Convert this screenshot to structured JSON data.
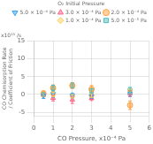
{
  "chart_data": {
    "type": "scatter",
    "xlabel": "CO Pressure, x10⁻⁴ Pa",
    "ylabel": "CO Chemisorption Rate\n/ Coefficient of Friction",
    "annotations": [
      "x10¹³ /s"
    ],
    "legend_title": "O₂ Initial Pressure",
    "legend": "upper right",
    "grid": true,
    "xlim": [
      0,
      6
    ],
    "ylim": [
      -6,
      15
    ],
    "xticks": [
      0,
      1,
      2,
      3,
      4,
      5,
      6
    ],
    "yticks": [
      -5,
      0,
      5,
      10,
      15
    ],
    "series": [
      {
        "name": "5.0 × 10⁻⁴ Pa",
        "marker": "triangle-down",
        "x": [
          0.5,
          1.0,
          2.0,
          3.0,
          5.0
        ],
        "values": [
          -0.3,
          0.2,
          -0.3,
          -0.5,
          0.2
        ],
        "yerr": [
          0.8,
          1.0,
          0.7,
          0.6,
          0.8
        ]
      },
      {
        "name": "3.0 × 10⁻⁴ Pa",
        "marker": "triangle-up",
        "x": [
          0.5,
          1.0,
          2.0,
          3.0,
          5.0
        ],
        "values": [
          -0.1,
          -1.0,
          -1.5,
          -1.0,
          0.3
        ],
        "yerr": [
          0.5,
          0.8,
          1.0,
          0.7,
          0.8
        ]
      },
      {
        "name": "2.0 × 10⁻⁴ Pa",
        "marker": "circle",
        "x": [
          0.5,
          1.0,
          2.0,
          3.0,
          5.0
        ],
        "values": [
          0.3,
          1.8,
          2.5,
          1.5,
          -3.0
        ],
        "yerr": [
          0.7,
          0.9,
          0.8,
          1.0,
          1.2
        ]
      },
      {
        "name": "1.0 × 10⁻⁴ Pa",
        "marker": "diamond",
        "x": [
          0.5,
          1.0,
          2.0,
          3.0,
          5.0
        ],
        "values": [
          0.0,
          0.0,
          -0.5,
          -0.3,
          1.0
        ],
        "yerr": [
          0.5,
          0.6,
          0.5,
          0.5,
          0.7
        ]
      },
      {
        "name": "5.0 × 10⁻⁵ Pa",
        "marker": "square",
        "x": [
          0.5,
          1.0,
          2.0,
          3.0,
          5.0
        ],
        "values": [
          0.0,
          1.8,
          2.5,
          1.0,
          1.2
        ],
        "yerr": [
          0.5,
          0.8,
          0.7,
          0.6,
          0.8
        ]
      }
    ]
  }
}
